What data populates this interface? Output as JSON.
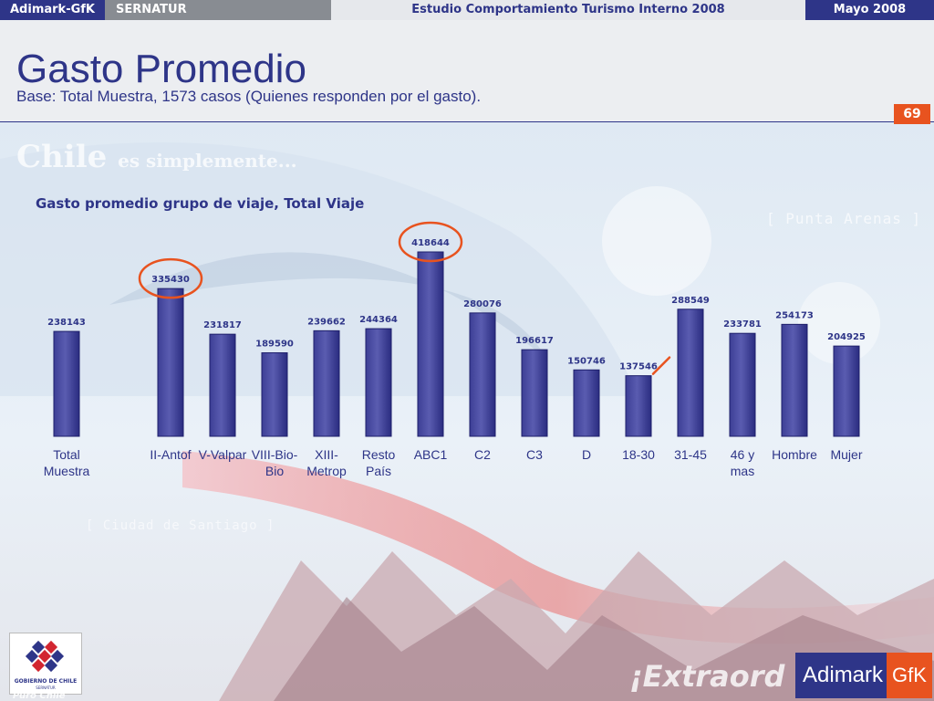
{
  "topbar": {
    "brand": "Adimark-GfK",
    "client": "SERNATUR",
    "study": "Estudio Comportamiento Turismo Interno 2008",
    "date": "Mayo 2008"
  },
  "header": {
    "title": "Gasto Promedio",
    "subtitle": "Base: Total Muestra, 1573 casos (Quienes responden por el gasto).",
    "page_number": "69"
  },
  "background": {
    "slogan": "Chile",
    "slogan_rest": "es simplemente...",
    "tag_top": "[ Punta Arenas ]",
    "tag_bottom": "[ Ciudad de Santiago ]",
    "banner": "¡Extraord"
  },
  "logos": {
    "gov_text": "GOBIERNO DE CHILE",
    "gov_sub": "SERNATUR",
    "puro": "Puro Chile",
    "company_a": "Adimark",
    "company_b": "GfK"
  },
  "colors": {
    "bar": "#5a5cb0",
    "bar_edge": "#1e1f6b",
    "highlight": "#e8531f",
    "text": "#2e3588"
  },
  "chart_data": {
    "type": "bar",
    "title": "Gasto promedio grupo de viaje, Total Viaje",
    "categories": [
      "Total Muestra",
      "",
      "II-Antof",
      "V-Valpar",
      "VIII-Bio-Bio",
      "XIII-Metrop",
      "Resto País",
      "ABC1",
      "C2",
      "C3",
      "D",
      "18-30",
      "31-45",
      "46 y mas",
      "Hombre",
      "Mujer"
    ],
    "category_lines": [
      [
        "Total",
        "Muestra"
      ],
      [],
      [
        "II-Antof"
      ],
      [
        "V-Valpar"
      ],
      [
        "VIII-Bio-",
        "Bio"
      ],
      [
        "XIII-",
        "Metrop"
      ],
      [
        "Resto",
        "País"
      ],
      [
        "ABC1"
      ],
      [
        "C2"
      ],
      [
        "C3"
      ],
      [
        "D"
      ],
      [
        "18-30"
      ],
      [
        "31-45"
      ],
      [
        "46 y",
        "mas"
      ],
      [
        "Hombre"
      ],
      [
        "Mujer"
      ]
    ],
    "values": [
      238143,
      null,
      335430,
      231817,
      189590,
      239662,
      244364,
      418644,
      280076,
      196617,
      150746,
      137546,
      288549,
      233781,
      254173,
      204925
    ],
    "highlighted_circle": [
      "II-Antof",
      "ABC1"
    ],
    "highlighted_tick": [
      "18-30"
    ],
    "ylim": [
      0,
      418644
    ],
    "grid": false,
    "legend": "none"
  }
}
